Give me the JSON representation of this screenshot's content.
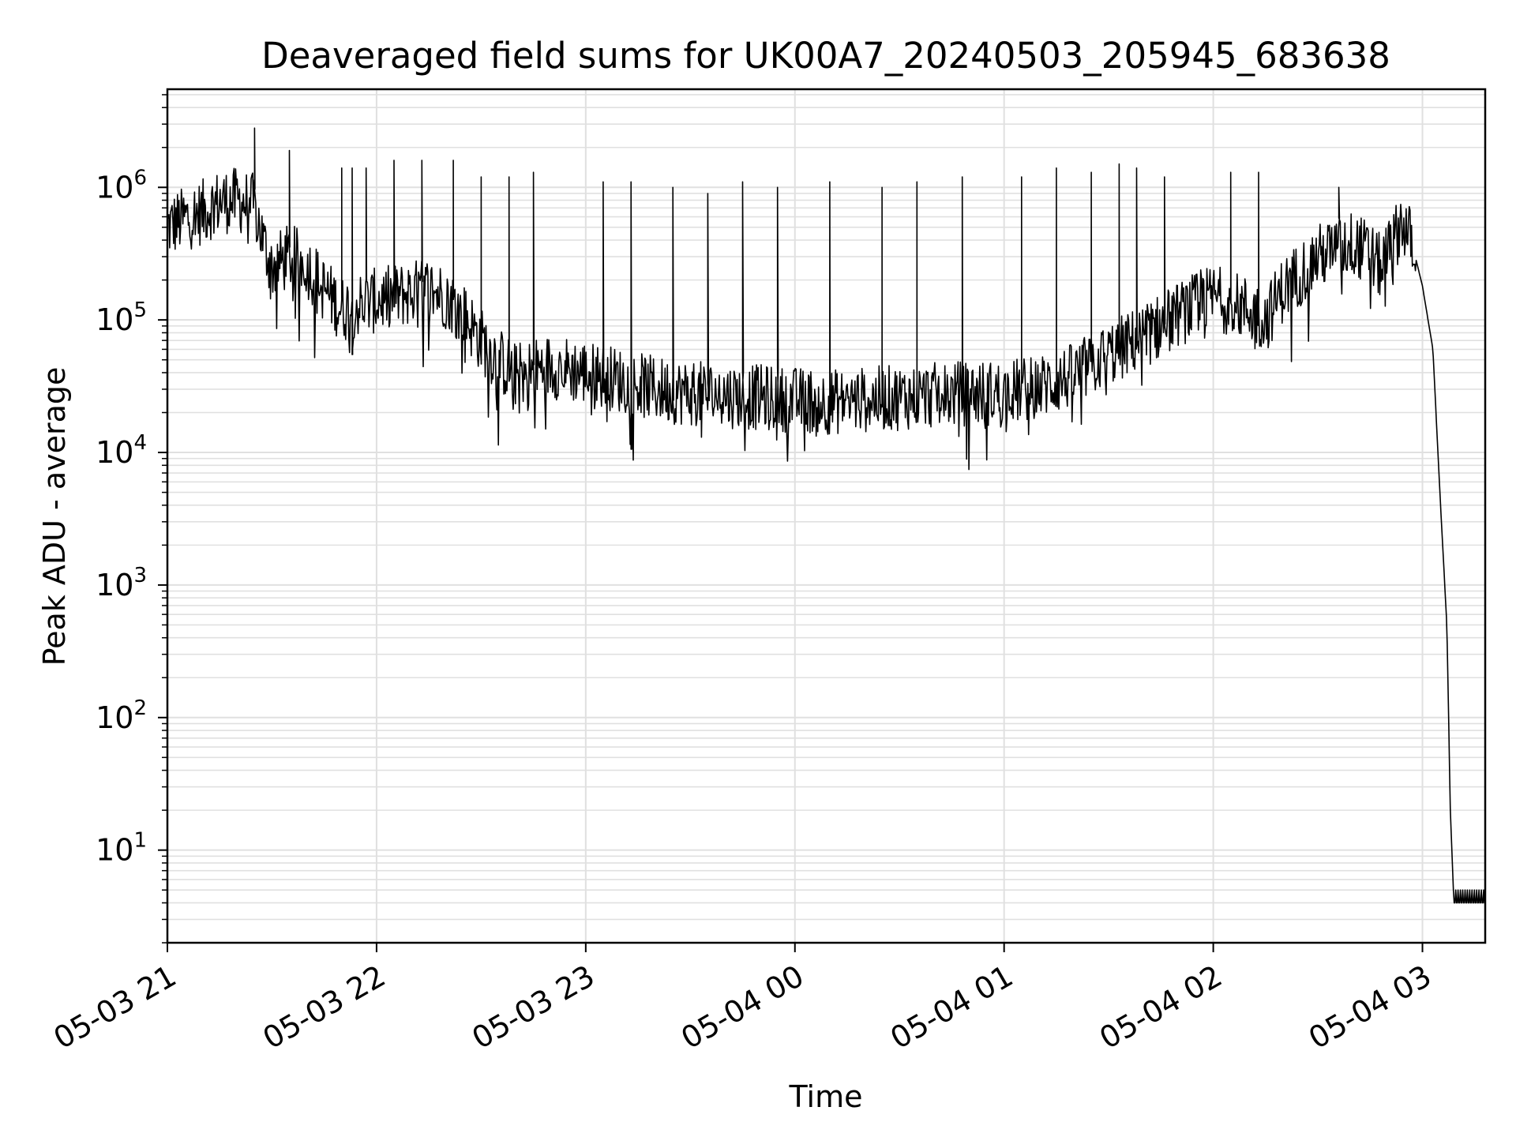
{
  "chart_data": {
    "type": "line",
    "title": "Deaveraged field sums for UK00A7_20240503_205945_683638",
    "xlabel": "Time",
    "ylabel": "Peak ADU - average",
    "x_scale": "time",
    "y_scale": "log",
    "xlim": [
      "2024-05-03 21:00",
      "2024-05-04 03:18"
    ],
    "ylim": [
      2,
      5500000
    ],
    "grid": true,
    "line_color": "#000000",
    "grid_color": "#e0e0e0",
    "x_ticks": [
      "05-03 21",
      "05-03 22",
      "05-03 23",
      "05-04 00",
      "05-04 01",
      "05-04 02",
      "05-04 03"
    ],
    "x_tick_times": [
      "2024-05-03 21:00",
      "2024-05-03 22:00",
      "2024-05-03 23:00",
      "2024-05-04 00:00",
      "2024-05-04 01:00",
      "2024-05-04 02:00",
      "2024-05-04 03:00"
    ],
    "y_ticks": [
      {
        "base": "10",
        "exp": "1",
        "value": 10
      },
      {
        "base": "10",
        "exp": "2",
        "value": 100
      },
      {
        "base": "10",
        "exp": "3",
        "value": 1000
      },
      {
        "base": "10",
        "exp": "4",
        "value": 10000
      },
      {
        "base": "10",
        "exp": "5",
        "value": 100000
      },
      {
        "base": "10",
        "exp": "6",
        "value": 1000000
      }
    ],
    "series": [
      {
        "baseline": [
          [
            "2024-05-03 21:00",
            500000
          ],
          [
            "2024-05-03 21:05",
            580000
          ],
          [
            "2024-05-03 21:10",
            650000
          ],
          [
            "2024-05-03 21:15",
            780000
          ],
          [
            "2024-05-03 21:20",
            800000
          ],
          [
            "2024-05-03 21:25",
            720000
          ],
          [
            "2024-05-03 21:28",
            350000
          ],
          [
            "2024-05-03 21:30",
            250000
          ],
          [
            "2024-05-03 21:35",
            300000
          ],
          [
            "2024-05-03 21:40",
            260000
          ],
          [
            "2024-05-03 21:45",
            170000
          ],
          [
            "2024-05-03 21:50",
            120000
          ],
          [
            "2024-05-03 22:00",
            140000
          ],
          [
            "2024-05-03 22:10",
            160000
          ],
          [
            "2024-05-03 22:15",
            170000
          ],
          [
            "2024-05-03 22:20",
            150000
          ],
          [
            "2024-05-03 22:25",
            110000
          ],
          [
            "2024-05-03 22:30",
            70000
          ],
          [
            "2024-05-03 22:35",
            50000
          ],
          [
            "2024-05-03 22:40",
            38000
          ],
          [
            "2024-05-03 22:50",
            45000
          ],
          [
            "2024-05-03 23:00",
            40000
          ],
          [
            "2024-05-03 23:10",
            35000
          ],
          [
            "2024-05-03 23:20",
            30000
          ],
          [
            "2024-05-03 23:30",
            28000
          ],
          [
            "2024-05-03 23:40",
            27000
          ],
          [
            "2024-05-03 23:50",
            26000
          ],
          [
            "2024-05-04 00:00",
            25000
          ],
          [
            "2024-05-04 00:10",
            24000
          ],
          [
            "2024-05-04 00:20",
            25000
          ],
          [
            "2024-05-04 00:30",
            26000
          ],
          [
            "2024-05-04 00:40",
            27000
          ],
          [
            "2024-05-04 00:50",
            28000
          ],
          [
            "2024-05-04 01:00",
            28000
          ],
          [
            "2024-05-04 01:10",
            31000
          ],
          [
            "2024-05-04 01:20",
            38000
          ],
          [
            "2024-05-04 01:30",
            55000
          ],
          [
            "2024-05-04 01:40",
            75000
          ],
          [
            "2024-05-04 01:50",
            110000
          ],
          [
            "2024-05-04 02:00",
            150000
          ],
          [
            "2024-05-04 02:10",
            120000
          ],
          [
            "2024-05-04 02:15",
            100000
          ],
          [
            "2024-05-04 02:20",
            170000
          ],
          [
            "2024-05-04 02:30",
            300000
          ],
          [
            "2024-05-04 02:40",
            380000
          ],
          [
            "2024-05-04 02:45",
            310000
          ],
          [
            "2024-05-04 02:48",
            250000
          ],
          [
            "2024-05-04 02:52",
            400000
          ],
          [
            "2024-05-04 02:54",
            560000
          ],
          [
            "2024-05-04 02:57",
            380000
          ],
          [
            "2024-05-04 03:00",
            180000
          ],
          [
            "2024-05-04 03:03",
            60000
          ],
          [
            "2024-05-04 03:05",
            5000
          ],
          [
            "2024-05-04 03:07",
            500
          ],
          [
            "2024-05-04 03:08",
            20
          ],
          [
            "2024-05-04 03:09",
            4
          ],
          [
            "2024-05-04 03:18",
            4
          ]
        ],
        "spikes": [
          [
            "2024-05-03 21:25",
            2800000
          ],
          [
            "2024-05-03 21:35",
            1900000
          ],
          [
            "2024-05-03 21:50",
            1400000
          ],
          [
            "2024-05-03 21:53",
            1400000
          ],
          [
            "2024-05-03 21:57",
            1400000
          ],
          [
            "2024-05-03 22:05",
            1600000
          ],
          [
            "2024-05-03 22:13",
            1600000
          ],
          [
            "2024-05-03 22:22",
            1600000
          ],
          [
            "2024-05-03 22:30",
            1200000
          ],
          [
            "2024-05-03 22:38",
            1200000
          ],
          [
            "2024-05-03 22:45",
            1300000
          ],
          [
            "2024-05-03 23:05",
            1100000
          ],
          [
            "2024-05-03 23:13",
            1100000
          ],
          [
            "2024-05-03 23:25",
            1000000
          ],
          [
            "2024-05-03 23:35",
            900000
          ],
          [
            "2024-05-03 23:45",
            1100000
          ],
          [
            "2024-05-03 23:55",
            1000000
          ],
          [
            "2024-05-04 00:10",
            1100000
          ],
          [
            "2024-05-04 00:25",
            1000000
          ],
          [
            "2024-05-04 00:35",
            1100000
          ],
          [
            "2024-05-04 00:48",
            1200000
          ],
          [
            "2024-05-04 01:05",
            1200000
          ],
          [
            "2024-05-04 01:15",
            1400000
          ],
          [
            "2024-05-04 01:25",
            1300000
          ],
          [
            "2024-05-04 01:33",
            1500000
          ],
          [
            "2024-05-04 01:38",
            1400000
          ],
          [
            "2024-05-04 01:46",
            1200000
          ],
          [
            "2024-05-04 02:05",
            1300000
          ],
          [
            "2024-05-04 02:13",
            1300000
          ],
          [
            "2024-05-04 02:36",
            1000000
          ]
        ]
      }
    ]
  }
}
